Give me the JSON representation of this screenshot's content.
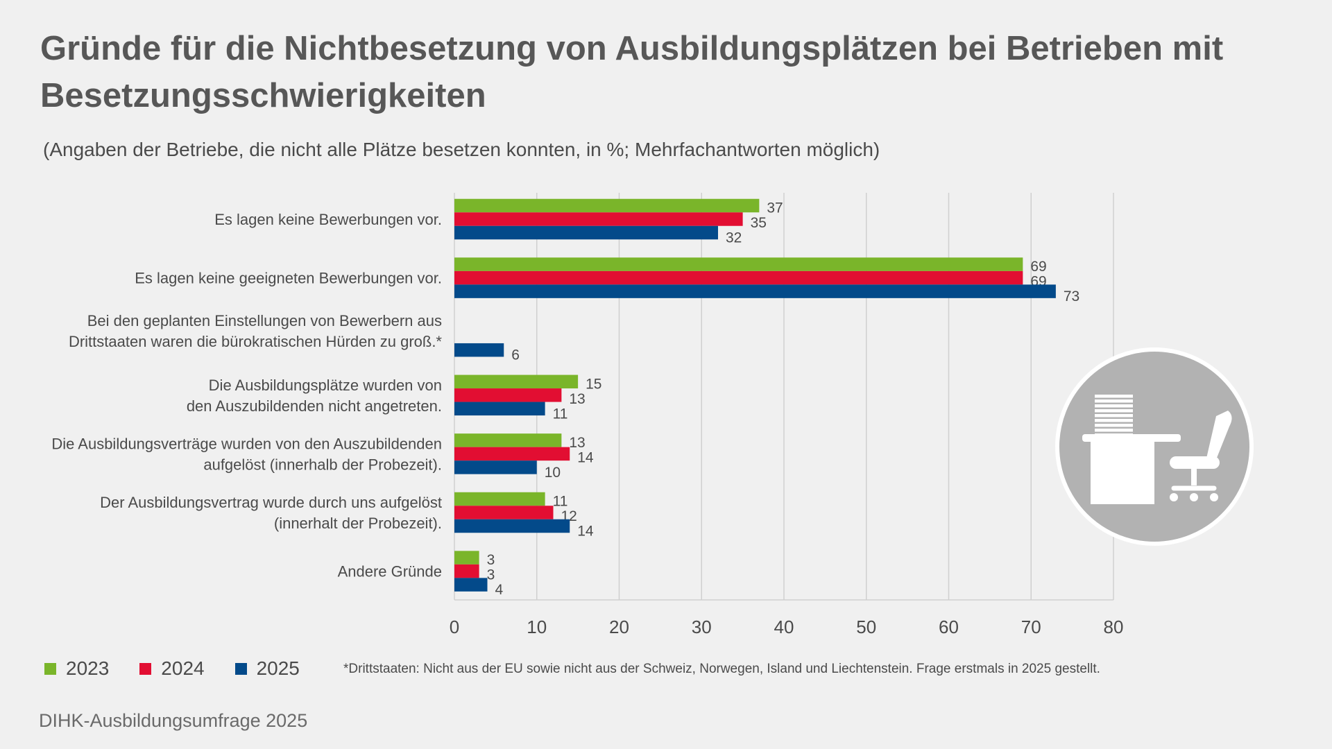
{
  "title": "Gründe für die Nichtbesetzung von Ausbildungsplätzen bei Betrieben mit Besetzungsschwierigkeiten",
  "subtitle": "(Angaben der Betriebe, die nicht alle Plätze besetzen konnten, in %; Mehrfachantworten möglich)",
  "footnote": "*Drittstaaten: Nicht aus der EU sowie nicht aus der Schweiz, Norwegen, Island und Liechtenstein. Frage erstmals in 2025 gestellt.",
  "source": "DIHK-Ausbildungsumfrage 2025",
  "icon": "office-desk-chair-icon",
  "chart_data": {
    "type": "bar",
    "orientation": "horizontal",
    "categories": [
      [
        "Es lagen keine Bewerbungen vor."
      ],
      [
        "Es lagen keine geeigneten Bewerbungen vor."
      ],
      [
        "Bei den geplanten Einstellungen von Bewerbern aus",
        "Drittstaaten waren die bürokratischen Hürden zu groß.*"
      ],
      [
        "Die Ausbildungsplätze wurden von",
        "den Auszubildenden nicht angetreten."
      ],
      [
        "Die Ausbildungsverträge wurden von den Auszubildenden",
        "aufgelöst (innerhalb der Probezeit)."
      ],
      [
        "Der Ausbildungsvertrag wurde durch uns aufgelöst",
        "(innerhalt der Probezeit)."
      ],
      [
        "Andere Gründe"
      ]
    ],
    "series": [
      {
        "name": "2023",
        "color": "#7ab52a",
        "values": [
          37,
          69,
          null,
          15,
          13,
          11,
          3
        ]
      },
      {
        "name": "2024",
        "color": "#e20e32",
        "values": [
          35,
          69,
          null,
          13,
          14,
          12,
          3
        ]
      },
      {
        "name": "2025",
        "color": "#034a8a",
        "values": [
          32,
          73,
          6,
          11,
          10,
          14,
          4
        ]
      }
    ],
    "xlim": [
      0,
      80
    ],
    "xticks": [
      0,
      10,
      20,
      30,
      40,
      50,
      60,
      70,
      80
    ],
    "grid": true,
    "legend_position": "bottom-left"
  }
}
